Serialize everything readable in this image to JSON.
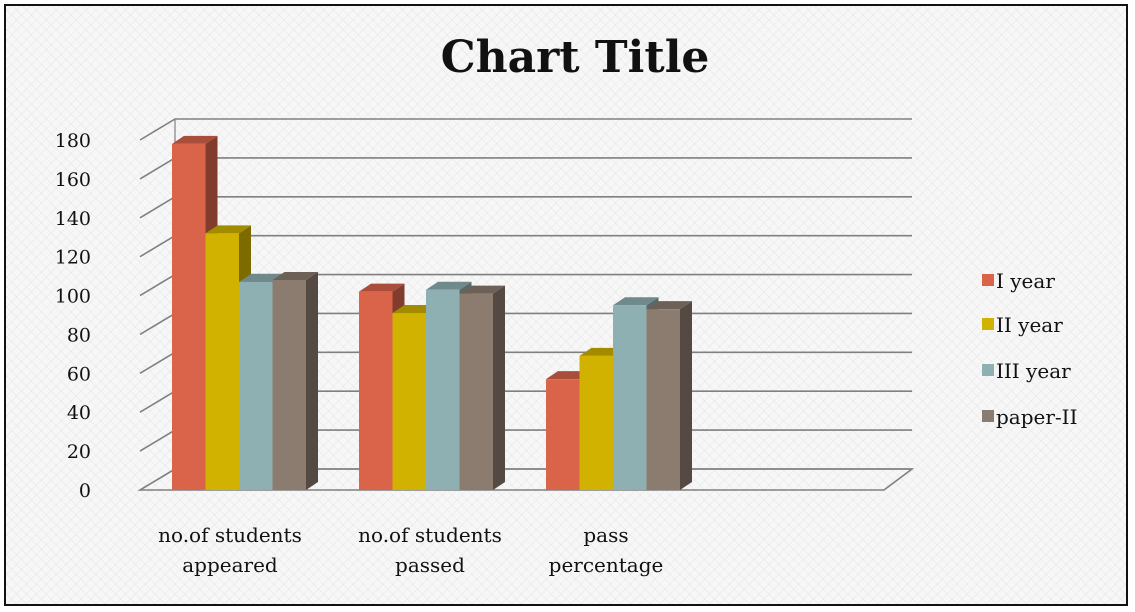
{
  "chart_data": {
    "type": "bar",
    "title": "Chart Title",
    "categories": [
      [
        "no.of students",
        "appeared"
      ],
      [
        "no.of students",
        "passed"
      ],
      [
        "pass",
        "percentage"
      ]
    ],
    "series": [
      {
        "name": "I year",
        "values": [
          178,
          102,
          57
        ],
        "color": "#d9644a"
      },
      {
        "name": "II year",
        "values": [
          132,
          91,
          69
        ],
        "color": "#d1b200"
      },
      {
        "name": "III year",
        "values": [
          107,
          103,
          95
        ],
        "color": "#8fb0b2"
      },
      {
        "name": "paper-II",
        "values": [
          108,
          101,
          93
        ],
        "color": "#8c7b6f"
      }
    ],
    "ylim": [
      0,
      180
    ],
    "yticks": [
      0,
      20,
      40,
      60,
      80,
      100,
      120,
      140,
      160,
      180
    ],
    "grid": true,
    "legend_position": "right",
    "style": "3d-clustered-column"
  }
}
